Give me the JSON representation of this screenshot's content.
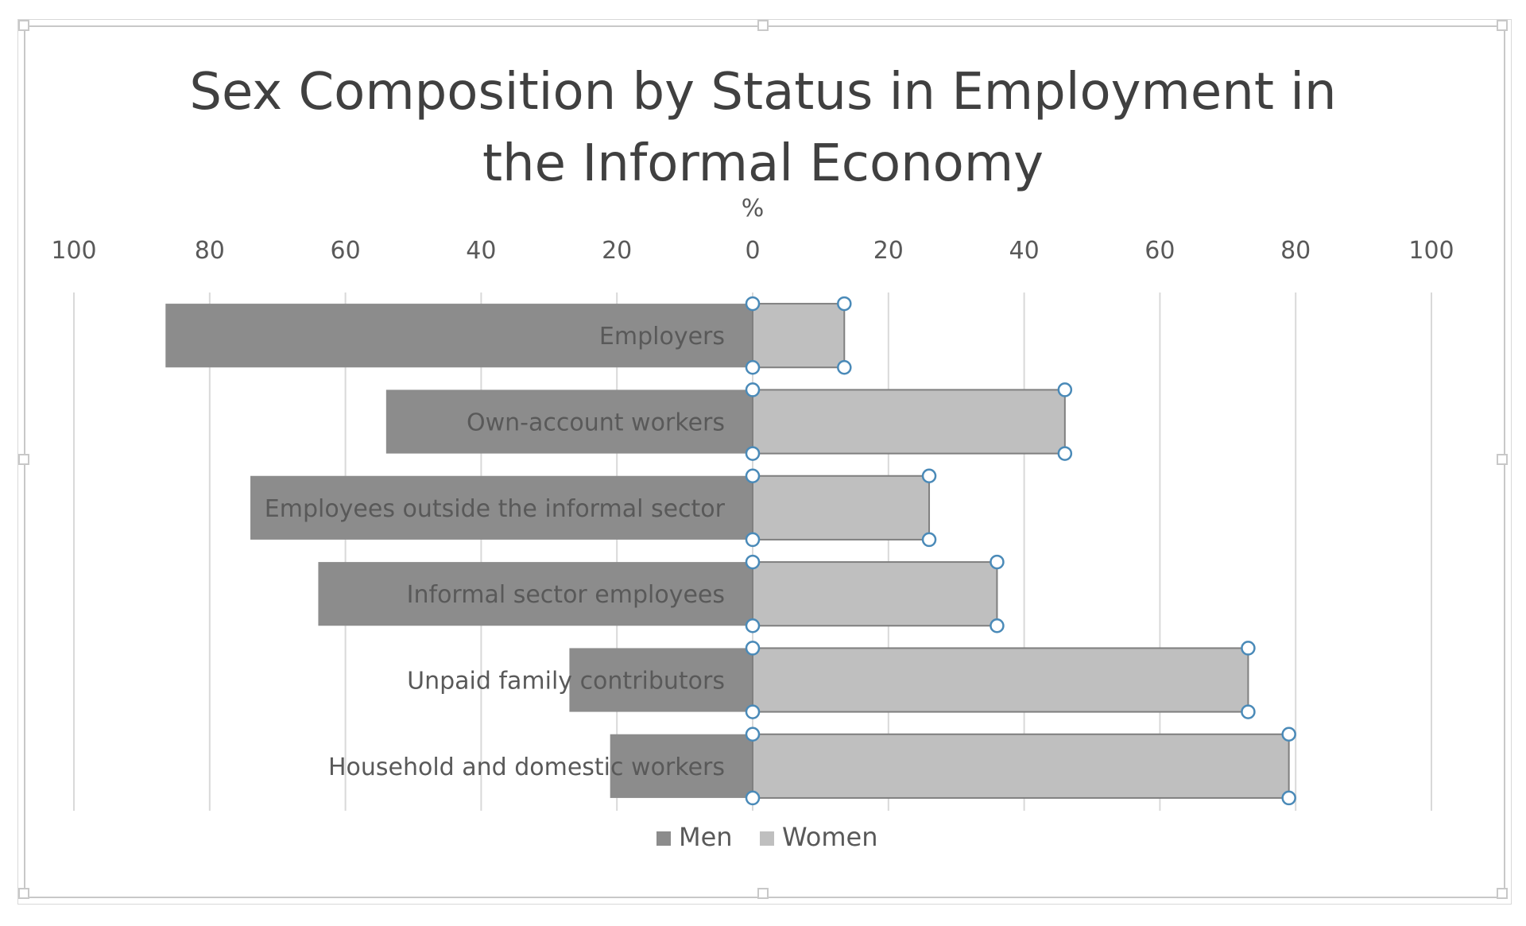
{
  "chart_data": {
    "type": "bar",
    "orientation": "horizontal",
    "layout": "diverging",
    "title": "Sex Composition by Status in Employment in the Informal Economy",
    "title_lines": [
      "Sex Composition by Status in Employment in",
      "the Informal Economy"
    ],
    "xlabel": "%",
    "ylabel": "",
    "xlim": [
      -100,
      100
    ],
    "x_ticks": [
      -100,
      -80,
      -60,
      -40,
      -20,
      0,
      20,
      40,
      60,
      80,
      100
    ],
    "x_tick_labels": [
      "100",
      "80",
      "60",
      "40",
      "20",
      "0",
      "20",
      "40",
      "60",
      "80",
      "100"
    ],
    "categories": [
      "Employers",
      "Own-account workers",
      "Employees outside the informal sector",
      "Informal sector employees",
      "Unpaid family contributors",
      "Household and domestic workers"
    ],
    "series": [
      {
        "name": "Men",
        "color": "#8c8c8c",
        "direction": "left",
        "values": [
          86.5,
          54,
          74,
          64,
          27,
          21
        ]
      },
      {
        "name": "Women",
        "color": "#bfbfbf",
        "direction": "right",
        "values": [
          13.5,
          46,
          26,
          36,
          73,
          79
        ]
      }
    ],
    "grid": true,
    "legend_position": "bottom",
    "selected_series": "Women"
  }
}
